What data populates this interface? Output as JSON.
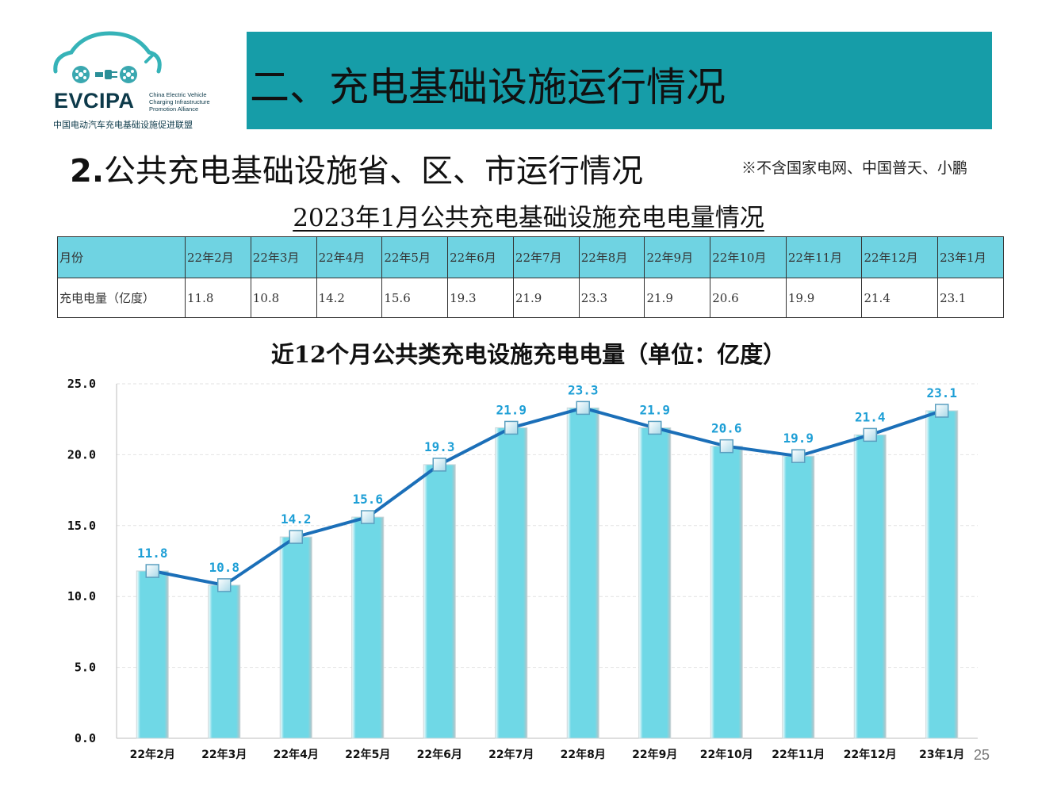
{
  "logo": {
    "brand": "EVCIPA",
    "en_lines": [
      "China Electric Vehicle",
      "Charging Infrastructure",
      "Promotion Alliance"
    ],
    "cn_name": "中国电动汽车充电基础设施促进联盟"
  },
  "header": {
    "title": "二、充电基础设施运行情况",
    "banner_color": "#169da8"
  },
  "section": {
    "number": "2.",
    "title": "公共充电基础设施省、区、市运行情况",
    "note": "※不含国家电网、中国普天、小鹏"
  },
  "table": {
    "title": "2023年1月公共充电基础设施充电电量情况",
    "header_label": "月份",
    "row_label": "充电电量（亿度）",
    "months": [
      "22年2月",
      "22年3月",
      "22年4月",
      "22年5月",
      "22年6月",
      "22年7月",
      "22年8月",
      "22年9月",
      "22年10月",
      "22年11月",
      "22年12月",
      "23年1月"
    ],
    "values": [
      "11.8",
      "10.8",
      "14.2",
      "15.6",
      "19.3",
      "21.9",
      "23.3",
      "21.9",
      "20.6",
      "19.9",
      "21.4",
      "23.1"
    ],
    "header_color": "#6fd3e2"
  },
  "chart_data": {
    "type": "bar",
    "title": "近12个月公共类充电设施充电电量（单位：亿度）",
    "categories": [
      "22年2月",
      "22年3月",
      "22年4月",
      "22年5月",
      "22年6月",
      "22年7月",
      "22年8月",
      "22年9月",
      "22年10月",
      "22年11月",
      "22年12月",
      "23年1月"
    ],
    "series": [
      {
        "type": "bar",
        "values": [
          11.8,
          10.8,
          14.2,
          15.6,
          19.3,
          21.9,
          23.3,
          21.9,
          20.6,
          19.9,
          21.4,
          23.1
        ]
      },
      {
        "type": "line",
        "values": [
          11.8,
          10.8,
          14.2,
          15.6,
          19.3,
          21.9,
          23.3,
          21.9,
          20.6,
          19.9,
          21.4,
          23.1
        ]
      }
    ],
    "data_labels": [
      "11.8",
      "10.8",
      "14.2",
      "15.6",
      "19.3",
      "21.9",
      "23.3",
      "21.9",
      "20.6",
      "19.9",
      "21.4",
      "23.1"
    ],
    "ylim": [
      0,
      25
    ],
    "yticks": [
      "0.0",
      "5.0",
      "10.0",
      "15.0",
      "20.0",
      "25.0"
    ],
    "grid": true,
    "colors": {
      "bar": "#6fd8e6",
      "line": "#1b6fb8",
      "label": "#1e9fd6"
    }
  },
  "page_number": "25"
}
